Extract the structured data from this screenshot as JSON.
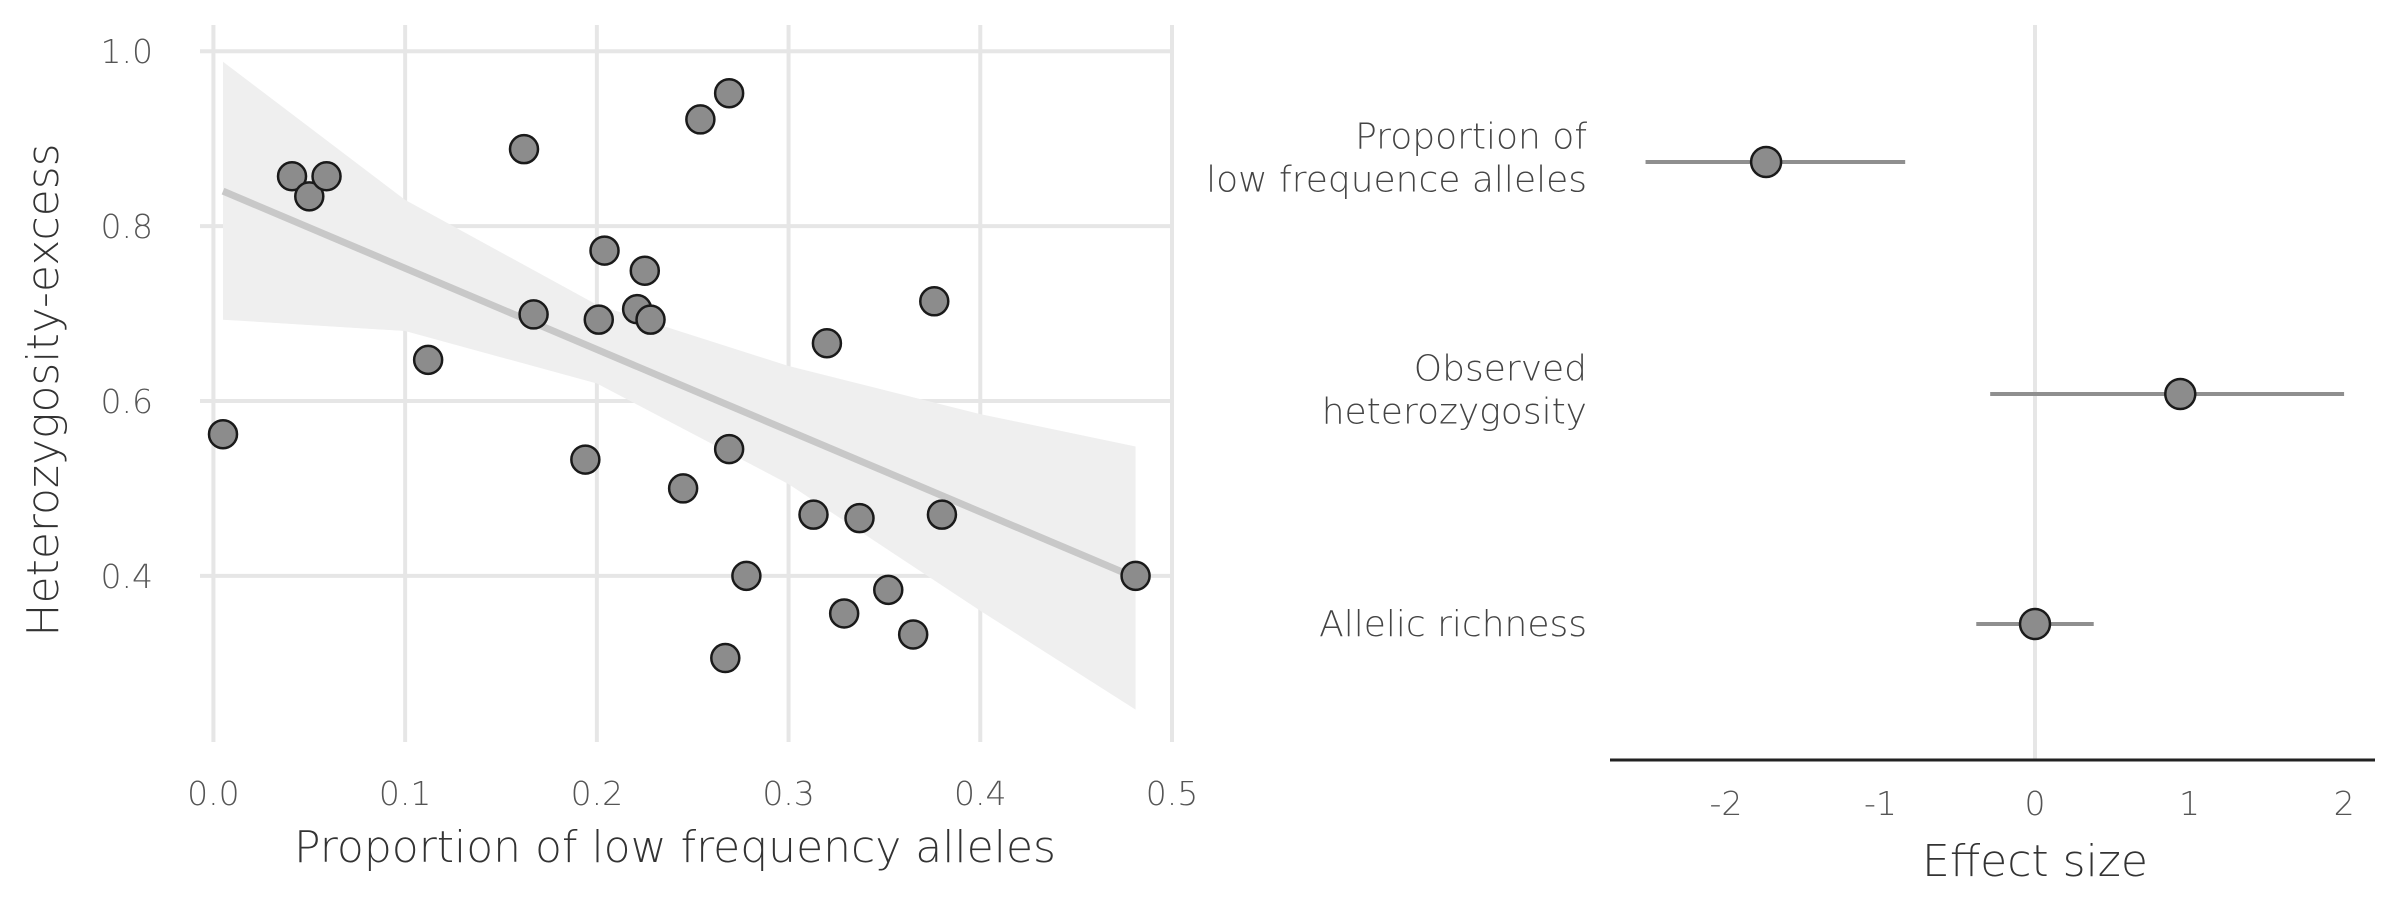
{
  "chart_data": [
    {
      "type": "scatter",
      "xlabel": "Proportion of low frequency alleles",
      "ylabel": "Heterozygosity-excess",
      "xlim": [
        -0.007,
        0.5
      ],
      "ylim": [
        0.21,
        1.03
      ],
      "xticks": [
        "0.0",
        "0.1",
        "0.2",
        "0.3",
        "0.4",
        "0.5"
      ],
      "xtick_values": [
        0.0,
        0.1,
        0.2,
        0.3,
        0.4,
        0.5
      ],
      "yticks": [
        "0.4",
        "0.6",
        "0.8",
        "1.0"
      ],
      "ytick_values": [
        0.4,
        0.6,
        0.8,
        1.0
      ],
      "grid": true,
      "points": [
        {
          "x": 0.005,
          "y": 0.562
        },
        {
          "x": 0.041,
          "y": 0.857
        },
        {
          "x": 0.05,
          "y": 0.834
        },
        {
          "x": 0.059,
          "y": 0.857
        },
        {
          "x": 0.112,
          "y": 0.647
        },
        {
          "x": 0.162,
          "y": 0.888
        },
        {
          "x": 0.167,
          "y": 0.699
        },
        {
          "x": 0.194,
          "y": 0.533
        },
        {
          "x": 0.201,
          "y": 0.693
        },
        {
          "x": 0.204,
          "y": 0.772
        },
        {
          "x": 0.221,
          "y": 0.705
        },
        {
          "x": 0.225,
          "y": 0.749
        },
        {
          "x": 0.228,
          "y": 0.693
        },
        {
          "x": 0.245,
          "y": 0.5
        },
        {
          "x": 0.254,
          "y": 0.922
        },
        {
          "x": 0.267,
          "y": 0.306
        },
        {
          "x": 0.269,
          "y": 0.545
        },
        {
          "x": 0.269,
          "y": 0.952
        },
        {
          "x": 0.278,
          "y": 0.4
        },
        {
          "x": 0.313,
          "y": 0.47
        },
        {
          "x": 0.32,
          "y": 0.666
        },
        {
          "x": 0.329,
          "y": 0.357
        },
        {
          "x": 0.337,
          "y": 0.466
        },
        {
          "x": 0.352,
          "y": 0.384
        },
        {
          "x": 0.365,
          "y": 0.333
        },
        {
          "x": 0.376,
          "y": 0.714
        },
        {
          "x": 0.38,
          "y": 0.47
        },
        {
          "x": 0.481,
          "y": 0.4
        }
      ],
      "fit_line": {
        "x": [
          0.005,
          0.481
        ],
        "y": [
          0.84,
          0.398
        ]
      },
      "confidence_band": {
        "x": [
          0.005,
          0.1,
          0.2,
          0.3,
          0.4,
          0.481
        ],
        "upper": [
          0.988,
          0.83,
          0.71,
          0.64,
          0.585,
          0.548
        ],
        "lower": [
          0.693,
          0.68,
          0.62,
          0.505,
          0.36,
          0.247
        ]
      },
      "colors": {
        "point": "#8c8c8c",
        "edge": "#1a1a1a",
        "fit": "#c8c8c8",
        "band": "#efefef",
        "grid": "#e6e6e6"
      }
    },
    {
      "type": "forest",
      "xlabel": "Effect size",
      "xlim": [
        -2.75,
        2.2
      ],
      "xticks": [
        "-2",
        "-1",
        "0",
        "1",
        "2"
      ],
      "xtick_values": [
        -2,
        -1,
        0,
        1,
        2
      ],
      "reference_line": 0,
      "predictors": [
        {
          "label": [
            "Proportion of",
            "low frequence alleles"
          ],
          "estimate": -1.74,
          "lower": -2.52,
          "upper": -0.84
        },
        {
          "label": [
            "Observed",
            "heterozygosity"
          ],
          "estimate": 0.94,
          "lower": -0.29,
          "upper": 2.0
        },
        {
          "label": [
            "Allelic richness"
          ],
          "estimate": 0.0,
          "lower": -0.38,
          "upper": 0.38
        }
      ],
      "colors": {
        "point": "#8c8c8c",
        "edge": "#1a1a1a",
        "interval": "#8f8f8f",
        "reference": "#e6e6e6",
        "axis": "#222222"
      }
    }
  ]
}
